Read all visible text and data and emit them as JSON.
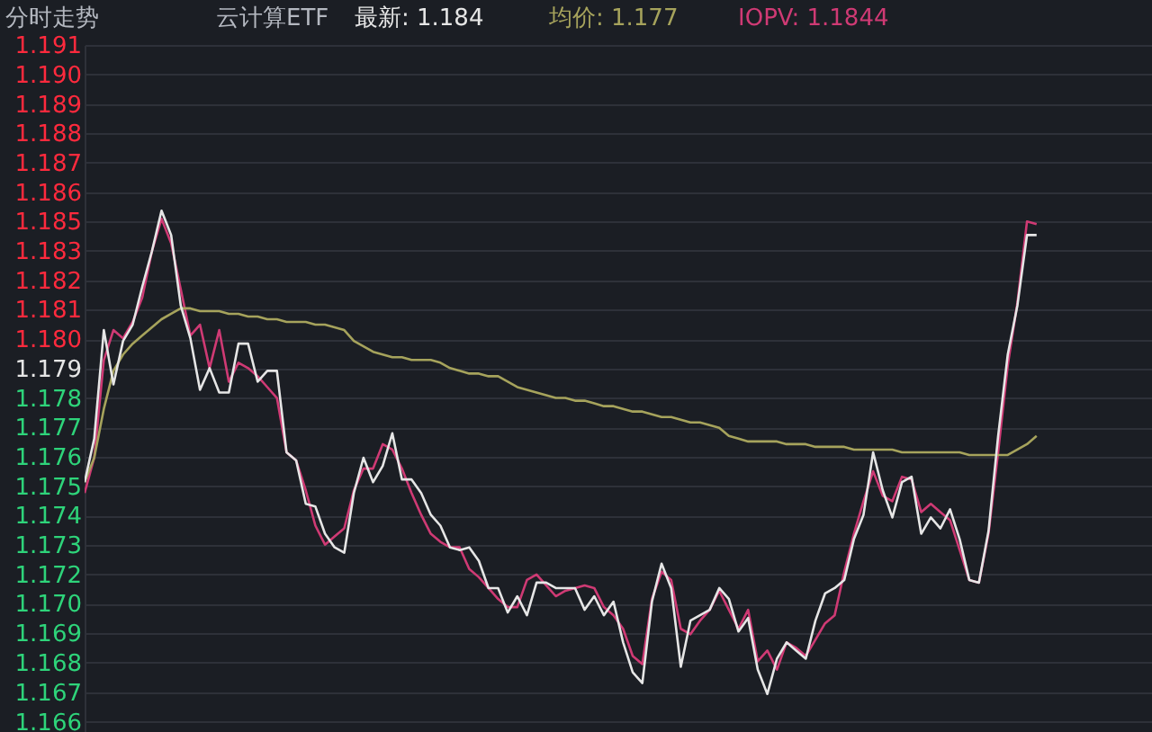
{
  "chart_data": {
    "type": "line",
    "title": "分时走势",
    "subtitle": "云计算ETF",
    "annotations": [
      "最新: 1.184",
      "均价: 1.177",
      "IOPV: 1.1844"
    ],
    "categories": [
      null,
      null,
      null,
      null,
      null,
      null,
      null,
      null,
      null,
      null,
      null,
      null,
      null,
      null,
      null,
      null,
      null,
      null,
      null,
      null,
      null,
      null,
      null,
      null,
      null,
      null,
      null,
      null,
      null,
      null,
      null,
      null,
      null,
      null,
      null,
      null,
      null,
      null,
      null,
      null,
      null,
      null,
      null,
      null,
      null,
      null,
      null,
      null,
      null,
      null,
      null,
      null,
      null,
      null,
      null,
      null,
      null,
      null,
      null,
      null,
      null,
      null,
      null,
      null,
      null,
      null,
      null,
      null,
      null,
      null,
      null,
      null,
      null,
      null,
      null,
      null,
      null,
      null,
      null,
      null,
      null,
      null,
      null,
      null,
      null,
      null,
      null,
      null,
      null,
      null,
      null,
      null,
      null,
      null,
      null,
      null,
      null,
      null,
      null,
      null,
      null,
      null,
      null,
      null,
      null,
      null,
      null,
      null,
      null,
      null,
      null,
      null
    ],
    "ylim": [
      1.1657,
      1.191
    ],
    "yticks": [
      {
        "value": 1.191,
        "label": "1.191"
      },
      {
        "value": 1.18992,
        "label": "1.190"
      },
      {
        "value": 1.18883,
        "label": "1.189"
      },
      {
        "value": 1.18775,
        "label": "1.188"
      },
      {
        "value": 1.18667,
        "label": "1.187"
      },
      {
        "value": 1.18558,
        "label": "1.186"
      },
      {
        "value": 1.1845,
        "label": "1.185"
      },
      {
        "value": 1.18342,
        "label": "1.183"
      },
      {
        "value": 1.18233,
        "label": "1.182"
      },
      {
        "value": 1.18125,
        "label": "1.181"
      },
      {
        "value": 1.18017,
        "label": "1.180"
      },
      {
        "value": 1.17908,
        "label": "1.179"
      },
      {
        "value": 1.178,
        "label": "1.178"
      },
      {
        "value": 1.17692,
        "label": "1.177"
      },
      {
        "value": 1.17583,
        "label": "1.176"
      },
      {
        "value": 1.17475,
        "label": "1.175"
      },
      {
        "value": 1.17367,
        "label": "1.174"
      },
      {
        "value": 1.17258,
        "label": "1.173"
      },
      {
        "value": 1.1715,
        "label": "1.172"
      },
      {
        "value": 1.17042,
        "label": "1.170"
      },
      {
        "value": 1.16933,
        "label": "1.169"
      },
      {
        "value": 1.16825,
        "label": "1.168"
      },
      {
        "value": 1.16717,
        "label": "1.167"
      },
      {
        "value": 1.16608,
        "label": "1.166"
      }
    ],
    "grid": "y",
    "tick_labels": "y",
    "marker": "none",
    "line_style": "solid",
    "series": [
      {
        "color": "#e6e6e6",
        "values": [
          1.1749,
          1.1765,
          1.1805,
          1.1785,
          1.1801,
          1.1807,
          1.1821,
          1.1834,
          1.1849,
          1.184,
          1.1814,
          1.1802,
          1.1783,
          1.1791,
          1.1782,
          1.1782,
          1.18,
          1.18,
          1.1786,
          1.179,
          1.179,
          1.176,
          1.1757,
          1.1741,
          1.174,
          1.173,
          1.1725,
          1.1723,
          1.1745,
          1.1758,
          1.1749,
          1.1755,
          1.1767,
          1.175,
          1.175,
          1.1745,
          1.1737,
          1.1733,
          1.1725,
          1.1724,
          1.1725,
          1.172,
          1.171,
          1.171,
          1.1701,
          1.1707,
          1.17,
          1.1712,
          1.1712,
          1.171,
          1.171,
          1.171,
          1.1702,
          1.1707,
          1.17,
          1.1705,
          1.169,
          1.1679,
          1.1675,
          1.1705,
          1.1719,
          1.171,
          1.1681,
          1.1698,
          1.17,
          1.1702,
          1.171,
          1.1706,
          1.1694,
          1.1699,
          1.168,
          1.1671,
          1.1684,
          1.169,
          1.1687,
          1.1684,
          1.1698,
          1.1708,
          1.171,
          1.1713,
          1.1728,
          1.1737,
          1.176,
          1.1746,
          1.1736,
          1.1749,
          1.1751,
          1.173,
          1.1736,
          1.1732,
          1.1739,
          1.1728,
          1.1713,
          1.1712,
          1.1731,
          1.1766,
          1.1796,
          1.1814,
          1.184,
          1.184,
          null,
          null,
          null,
          null,
          null,
          null,
          null,
          null,
          null,
          null,
          null,
          null
        ]
      },
      {
        "color": "#a6a35c",
        "values": [
          1.1749,
          1.1758,
          1.1776,
          1.179,
          1.1796,
          1.18,
          1.1803,
          1.1806,
          1.1809,
          1.1811,
          1.1813,
          1.1813,
          1.1812,
          1.1812,
          1.1812,
          1.1811,
          1.1811,
          1.181,
          1.181,
          1.1809,
          1.1809,
          1.1808,
          1.1808,
          1.1808,
          1.1807,
          1.1807,
          1.1806,
          1.1805,
          1.1801,
          1.1799,
          1.1797,
          1.1796,
          1.1795,
          1.1795,
          1.1794,
          1.1794,
          1.1794,
          1.1793,
          1.1791,
          1.179,
          1.1789,
          1.1789,
          1.1788,
          1.1788,
          1.1786,
          1.1784,
          1.1783,
          1.1782,
          1.1781,
          1.178,
          1.178,
          1.1779,
          1.1779,
          1.1778,
          1.1777,
          1.1777,
          1.1776,
          1.1775,
          1.1775,
          1.1774,
          1.1773,
          1.1773,
          1.1772,
          1.1771,
          1.1771,
          1.177,
          1.1769,
          1.1766,
          1.1765,
          1.1764,
          1.1764,
          1.1764,
          1.1764,
          1.1763,
          1.1763,
          1.1763,
          1.1762,
          1.1762,
          1.1762,
          1.1762,
          1.1761,
          1.1761,
          1.1761,
          1.1761,
          1.1761,
          1.176,
          1.176,
          1.176,
          1.176,
          1.176,
          1.176,
          1.176,
          1.1759,
          1.1759,
          1.1759,
          1.1759,
          1.1759,
          1.1761,
          1.1763,
          1.1766,
          null,
          null,
          null,
          null,
          null,
          null,
          null,
          null,
          null,
          null,
          null,
          null
        ]
      },
      {
        "color": "#cf3a74",
        "values": [
          1.1745,
          1.1758,
          1.1794,
          1.1805,
          1.1802,
          1.1808,
          1.1817,
          1.1834,
          1.1846,
          1.1837,
          1.182,
          1.1803,
          1.1807,
          1.1791,
          1.1805,
          1.1786,
          1.1793,
          1.1791,
          1.1788,
          1.1784,
          1.178,
          1.176,
          1.1757,
          1.1746,
          1.1733,
          1.1726,
          1.1729,
          1.1732,
          1.1746,
          1.1754,
          1.1754,
          1.1763,
          1.1761,
          1.1754,
          1.1745,
          1.1737,
          1.173,
          1.1727,
          1.1725,
          1.1725,
          1.1717,
          1.1714,
          1.171,
          1.1706,
          1.1703,
          1.1703,
          1.1713,
          1.1715,
          1.1711,
          1.1707,
          1.1709,
          1.171,
          1.1711,
          1.171,
          1.1703,
          1.17,
          1.1695,
          1.1685,
          1.1682,
          1.1706,
          1.1716,
          1.1713,
          1.1695,
          1.1693,
          1.1698,
          1.1702,
          1.1709,
          1.1702,
          1.1695,
          1.1702,
          1.1683,
          1.1687,
          1.168,
          1.169,
          1.1688,
          1.1685,
          1.1691,
          1.1697,
          1.17,
          1.1716,
          1.173,
          1.1742,
          1.1753,
          1.1744,
          1.1742,
          1.1751,
          1.175,
          1.1738,
          1.1741,
          1.1738,
          1.1735,
          1.1724,
          1.1713,
          1.1712,
          1.173,
          1.176,
          1.1792,
          1.1815,
          1.1845,
          1.1844,
          null,
          null,
          null,
          null,
          null,
          null,
          null,
          null,
          null,
          null,
          null,
          null
        ]
      }
    ]
  }
}
